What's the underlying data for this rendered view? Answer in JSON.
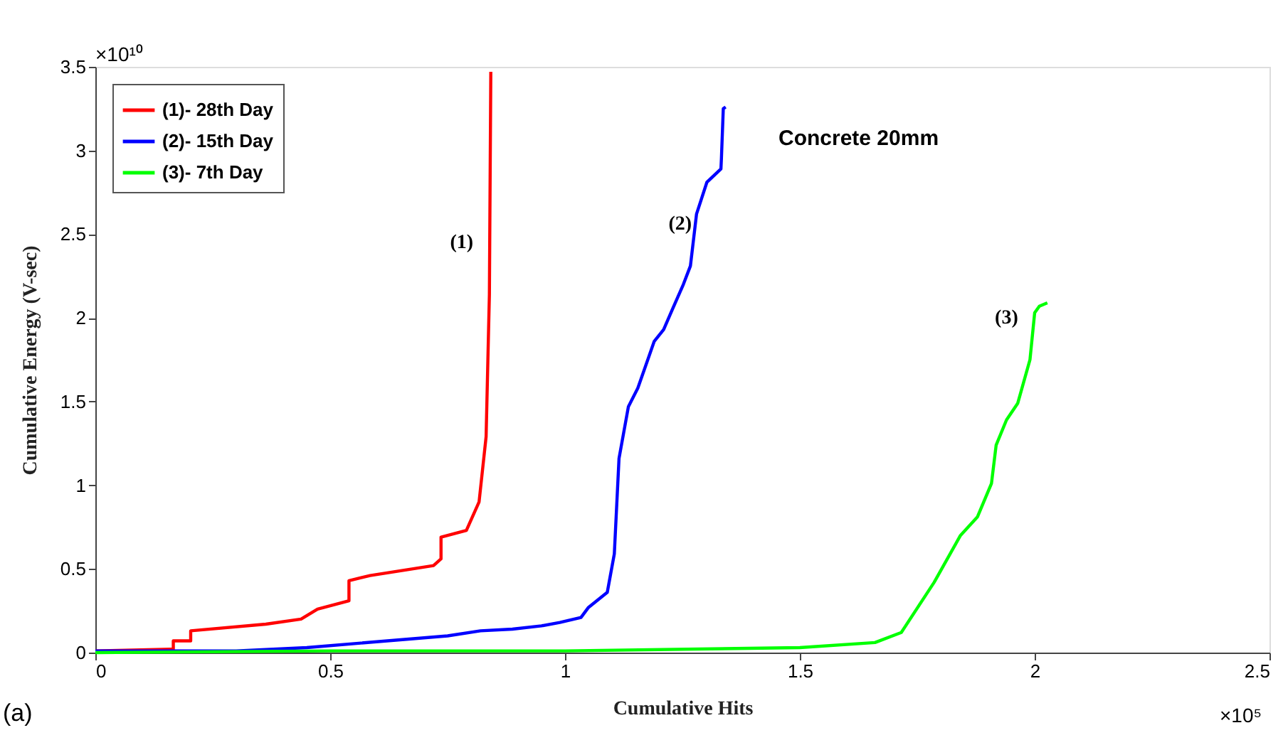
{
  "chart_data": {
    "type": "line",
    "xlabel": "Cumulative Hits",
    "ylabel": "Cumulative Energy (V-sec)",
    "xlim": [
      0,
      2.5
    ],
    "xticks": [
      0,
      0.5,
      1,
      1.5,
      2,
      2.5
    ],
    "ylim": [
      0,
      3.5
    ],
    "yticks": [
      0,
      0.5,
      1,
      1.5,
      2,
      2.5,
      3,
      3.5
    ],
    "grid": false,
    "legend": "top left",
    "line_style": "solid",
    "marker": "none",
    "series": [
      {
        "name": "(1)- 28th Day",
        "color": "#ff0000",
        "x": [
          0,
          0.16,
          0.166,
          0.166,
          0.203,
          0.203,
          0.363,
          0.438,
          0.473,
          0.54,
          0.54,
          0.585,
          0.72,
          0.736,
          0.736,
          0.79,
          0.817,
          0.832,
          0.839,
          0.842
        ],
        "values": [
          0.01,
          0.02,
          0.02,
          0.07,
          0.07,
          0.13,
          0.17,
          0.2,
          0.26,
          0.31,
          0.43,
          0.46,
          0.52,
          0.56,
          0.69,
          0.73,
          0.9,
          1.29,
          2.14,
          3.47
        ]
      },
      {
        "name": "(2)- 15th Day",
        "color": "#0000ff",
        "x": [
          0,
          0.3,
          0.45,
          0.75,
          0.82,
          0.888,
          0.95,
          0.989,
          1.034,
          1.05,
          1.09,
          1.105,
          1.115,
          1.135,
          1.155,
          1.19,
          1.21,
          1.23,
          1.252,
          1.267,
          1.28,
          1.302,
          1.332,
          1.333,
          1.337,
          1.342
        ],
        "values": [
          0.01,
          0.01,
          0.03,
          0.1,
          0.13,
          0.14,
          0.16,
          0.18,
          0.21,
          0.27,
          0.36,
          0.59,
          1.16,
          1.47,
          1.58,
          1.86,
          1.93,
          2.06,
          2.2,
          2.31,
          2.62,
          2.81,
          2.89,
          2.95,
          3.25,
          3.26
        ]
      },
      {
        "name": "(3)- 7th Day",
        "color": "#00ff00",
        "x": [
          0,
          0.5,
          1.0,
          1.5,
          1.66,
          1.716,
          1.786,
          1.842,
          1.878,
          1.908,
          1.918,
          1.94,
          1.964,
          1.99,
          2.0,
          2.01,
          2.027
        ],
        "values": [
          0,
          0.01,
          0.01,
          0.03,
          0.06,
          0.12,
          0.42,
          0.7,
          0.81,
          1.01,
          1.24,
          1.39,
          1.49,
          1.75,
          2.03,
          2.07,
          2.09
        ]
      }
    ],
    "annotations": [
      "(1)",
      "(2)",
      "(3)",
      "Concrete 20mm",
      "×10¹⁰",
      "×10⁵",
      "(a)"
    ]
  }
}
